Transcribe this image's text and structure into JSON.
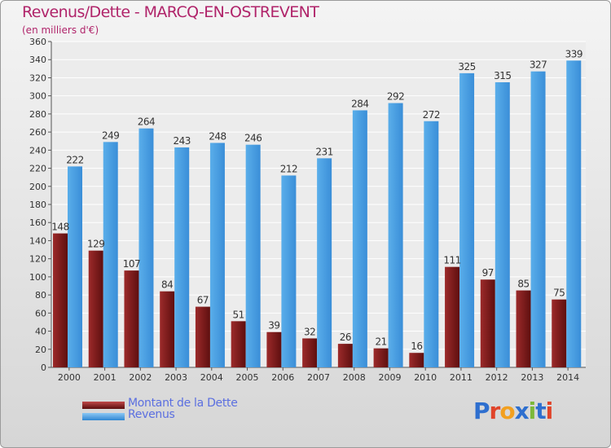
{
  "header": {
    "title": "Revenus/Dette - MARCQ-EN-OSTREVENT",
    "subtitle": "(en milliers d'€)"
  },
  "legend": {
    "debt_label": "Montant de la Dette",
    "revenue_label": "Revenus"
  },
  "logo": {
    "text": "Proxiti",
    "letters": [
      "P",
      "r",
      "o",
      "x",
      "i",
      "t",
      "i"
    ],
    "colors": [
      "#2e6fcf",
      "#e0442a",
      "#f2a020",
      "#2e6fcf",
      "#7cb83a",
      "#2e6fcf",
      "#e0442a"
    ]
  },
  "colors": {
    "debt": "#7b1a1a",
    "revenue": "#4d9fe3",
    "title": "#b0246a"
  },
  "chart_data": {
    "type": "bar",
    "title": "Revenus/Dette - MARCQ-EN-OSTREVENT",
    "subtitle": "(en milliers d'€)",
    "categories": [
      "2000",
      "2001",
      "2002",
      "2003",
      "2004",
      "2005",
      "2006",
      "2007",
      "2008",
      "2009",
      "2010",
      "2011",
      "2012",
      "2013",
      "2014"
    ],
    "series": [
      {
        "name": "Montant de la Dette",
        "values": [
          148,
          129,
          107,
          84,
          67,
          51,
          39,
          32,
          26,
          21,
          16,
          111,
          97,
          85,
          75
        ]
      },
      {
        "name": "Revenus",
        "values": [
          222,
          249,
          264,
          243,
          248,
          246,
          212,
          231,
          284,
          292,
          272,
          325,
          315,
          327,
          339
        ]
      }
    ],
    "ylim": [
      0,
      360
    ],
    "yticks": [
      0,
      20,
      40,
      60,
      80,
      100,
      120,
      140,
      160,
      180,
      200,
      220,
      240,
      260,
      280,
      300,
      320,
      340,
      360
    ],
    "grid": true,
    "legend_position": "bottom-left"
  }
}
